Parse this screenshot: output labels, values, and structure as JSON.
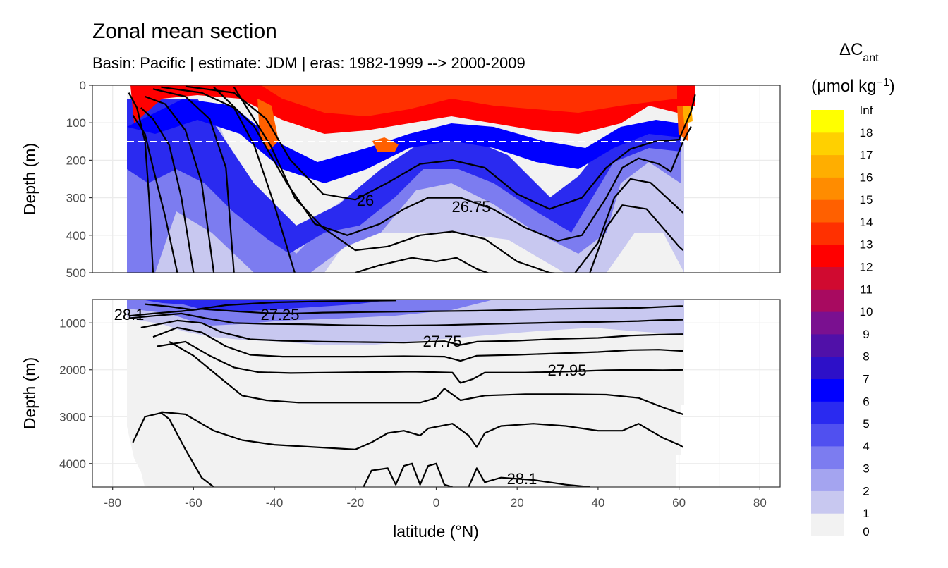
{
  "chart_data": {
    "type": "heatmap",
    "title": "Zonal mean section",
    "subtitle": "Basin: Pacific | estimate: JDM  | eras: 1982-1999 --> 2000-2009",
    "xlabel": "latitude (°N)",
    "ylabel": "Depth (m)",
    "xlim": [
      -85,
      85
    ],
    "x_ticks": [
      "-80",
      "-60",
      "-40",
      "-20",
      "0",
      "20",
      "40",
      "60",
      "80"
    ],
    "panels": [
      {
        "ylim": [
          0,
          500
        ],
        "y_ticks": [
          "0",
          "100",
          "200",
          "300",
          "400",
          "500"
        ]
      },
      {
        "ylim": [
          500,
          4500
        ],
        "y_ticks": [
          "1000",
          "2000",
          "3000",
          "4000"
        ]
      }
    ],
    "reference_depth_line": 150,
    "legend": {
      "title_main": "ΔC",
      "title_sub": "ant",
      "units": "(μmol kg",
      "units_sup": "−1",
      "units_close": ")",
      "placement": "right",
      "bins": [
        {
          "label": "0",
          "color": "#f2f2f2"
        },
        {
          "label": "1",
          "color": "#c8c8f0"
        },
        {
          "label": "2",
          "color": "#a4a4f0"
        },
        {
          "label": "3",
          "color": "#7c7cf0"
        },
        {
          "label": "4",
          "color": "#5050f0"
        },
        {
          "label": "5",
          "color": "#2a2af0"
        },
        {
          "label": "6",
          "color": "#0000ff"
        },
        {
          "label": "7",
          "color": "#2d10c8"
        },
        {
          "label": "8",
          "color": "#5010a8"
        },
        {
          "label": "9",
          "color": "#7a1090"
        },
        {
          "label": "10",
          "color": "#a80a60"
        },
        {
          "label": "11",
          "color": "#d00a30"
        },
        {
          "label": "12",
          "color": "#ff0000"
        },
        {
          "label": "13",
          "color": "#ff3000"
        },
        {
          "label": "14",
          "color": "#ff6000"
        },
        {
          "label": "15",
          "color": "#ff8c00"
        },
        {
          "label": "16",
          "color": "#ffae00"
        },
        {
          "label": "17",
          "color": "#ffd000"
        },
        {
          "label": "18",
          "color": "#ffff00"
        },
        {
          "label": "Inf",
          "color": null
        }
      ]
    },
    "isopycnal_labels": [
      "26",
      "26.75",
      "28.1",
      "27.25",
      "27.75",
      "27.95",
      "28.1"
    ],
    "isopycnals_upper": [
      {
        "d": [
          [
            -76,
            20
          ],
          [
            -74,
            60
          ],
          [
            -72,
            150
          ],
          [
            -71,
            300
          ],
          [
            -70,
            500
          ]
        ]
      },
      {
        "d": [
          [
            -75,
            80
          ],
          [
            -72,
            130
          ],
          [
            -70,
            220
          ],
          [
            -67,
            350
          ],
          [
            -64,
            500
          ]
        ]
      },
      {
        "d": [
          [
            -73,
            60
          ],
          [
            -70,
            90
          ],
          [
            -66,
            160
          ],
          [
            -63,
            300
          ],
          [
            -60,
            500
          ]
        ]
      },
      {
        "d": [
          [
            -72,
            30
          ],
          [
            -67,
            50
          ],
          [
            -62,
            120
          ],
          [
            -58,
            260
          ],
          [
            -55,
            500
          ]
        ]
      },
      {
        "d": [
          [
            -70,
            10
          ],
          [
            -62,
            30
          ],
          [
            -56,
            90
          ],
          [
            -52,
            220
          ],
          [
            -50,
            500
          ]
        ]
      },
      {
        "d": [
          [
            -68,
            5
          ],
          [
            -58,
            20
          ],
          [
            -50,
            60
          ],
          [
            -45,
            160
          ],
          [
            -40,
            320
          ],
          [
            -35,
            500
          ]
        ]
      },
      {
        "d": [
          [
            -62,
            3
          ],
          [
            -50,
            20
          ],
          [
            -42,
            90
          ],
          [
            -36,
            200
          ],
          [
            -28,
            290
          ],
          [
            -20,
            305
          ],
          [
            -12,
            260
          ],
          [
            -4,
            210
          ],
          [
            4,
            200
          ],
          [
            12,
            220
          ],
          [
            20,
            290
          ],
          [
            28,
            330
          ],
          [
            36,
            300
          ],
          [
            42,
            220
          ],
          [
            48,
            170
          ],
          [
            54,
            150
          ],
          [
            60,
            145
          ],
          [
            63,
            70
          ],
          [
            64,
            25
          ]
        ]
      },
      {
        "d": [
          [
            -55,
            5
          ],
          [
            -45,
            110
          ],
          [
            -37,
            260
          ],
          [
            -30,
            370
          ],
          [
            -22,
            400
          ],
          [
            -14,
            370
          ],
          [
            -8,
            330
          ],
          [
            -2,
            300
          ],
          [
            6,
            300
          ],
          [
            14,
            330
          ],
          [
            22,
            380
          ],
          [
            30,
            415
          ],
          [
            36,
            400
          ],
          [
            42,
            300
          ],
          [
            46,
            220
          ],
          [
            50,
            195
          ],
          [
            55,
            210
          ],
          [
            58,
            230
          ],
          [
            61,
            150
          ],
          [
            63,
            110
          ]
        ]
      },
      {
        "d": [
          [
            -50,
            5
          ],
          [
            -41,
            160
          ],
          [
            -35,
            300
          ],
          [
            -28,
            380
          ],
          [
            -20,
            440
          ],
          [
            -12,
            430
          ],
          [
            -4,
            400
          ],
          [
            4,
            390
          ],
          [
            12,
            410
          ],
          [
            20,
            470
          ],
          [
            28,
            500
          ],
          [
            34,
            505
          ],
          [
            40,
            420
          ],
          [
            44,
            300
          ],
          [
            48,
            250
          ],
          [
            53,
            260
          ],
          [
            57,
            300
          ],
          [
            60,
            330
          ],
          [
            61,
            340
          ]
        ]
      },
      {
        "d": [
          [
            -20,
            500
          ],
          [
            -14,
            480
          ],
          [
            -6,
            460
          ],
          [
            0,
            470
          ],
          [
            5,
            460
          ],
          [
            10,
            490
          ],
          [
            14,
            505
          ]
        ]
      },
      {
        "d": [
          [
            38,
            500
          ],
          [
            42,
            380
          ],
          [
            46,
            320
          ],
          [
            52,
            330
          ],
          [
            56,
            380
          ],
          [
            60,
            430
          ],
          [
            61,
            440
          ]
        ]
      }
    ],
    "isopycnals_lower": [
      {
        "d": [
          [
            -72,
            600
          ],
          [
            -66,
            650
          ],
          [
            -60,
            720
          ],
          [
            -52,
            620
          ],
          [
            -46,
            590
          ],
          [
            -40,
            560
          ],
          [
            -30,
            540
          ],
          [
            -20,
            530
          ],
          [
            -10,
            520
          ]
        ]
      },
      {
        "d": [
          [
            -76,
            850
          ],
          [
            -70,
            800
          ],
          [
            -63,
            750
          ],
          [
            -58,
            700
          ],
          [
            -50,
            750
          ],
          [
            -42,
            790
          ],
          [
            -35,
            800
          ],
          [
            -28,
            780
          ],
          [
            -20,
            770
          ],
          [
            -10,
            760
          ],
          [
            0,
            750
          ],
          [
            10,
            740
          ],
          [
            20,
            720
          ],
          [
            30,
            700
          ],
          [
            40,
            690
          ],
          [
            50,
            680
          ],
          [
            55,
            660
          ],
          [
            60,
            640
          ],
          [
            61,
            640
          ]
        ]
      },
      {
        "d": [
          [
            -76,
            900
          ],
          [
            -70,
            850
          ],
          [
            -63,
            800
          ],
          [
            -57,
            900
          ],
          [
            -50,
            1000
          ],
          [
            -42,
            1020
          ],
          [
            -32,
            1030
          ],
          [
            -22,
            1050
          ],
          [
            -12,
            1060
          ],
          [
            0,
            1050
          ],
          [
            10,
            1030
          ],
          [
            20,
            1010
          ],
          [
            30,
            990
          ],
          [
            40,
            980
          ],
          [
            50,
            960
          ],
          [
            55,
            940
          ],
          [
            61,
            930
          ]
        ]
      },
      {
        "d": [
          [
            -73,
            1100
          ],
          [
            -64,
            950
          ],
          [
            -58,
            1000
          ],
          [
            -53,
            1200
          ],
          [
            -46,
            1350
          ],
          [
            -38,
            1380
          ],
          [
            -28,
            1400
          ],
          [
            -18,
            1410
          ],
          [
            -8,
            1420
          ],
          [
            2,
            1390
          ],
          [
            6,
            1470
          ],
          [
            10,
            1400
          ],
          [
            20,
            1380
          ],
          [
            30,
            1340
          ],
          [
            40,
            1320
          ],
          [
            48,
            1270
          ],
          [
            55,
            1250
          ],
          [
            61,
            1240
          ]
        ]
      },
      {
        "d": [
          [
            -70,
            1300
          ],
          [
            -64,
            1100
          ],
          [
            -58,
            1200
          ],
          [
            -52,
            1500
          ],
          [
            -46,
            1680
          ],
          [
            -38,
            1720
          ],
          [
            -28,
            1720
          ],
          [
            -18,
            1720
          ],
          [
            -8,
            1710
          ],
          [
            2,
            1720
          ],
          [
            6,
            1810
          ],
          [
            10,
            1700
          ],
          [
            20,
            1680
          ],
          [
            30,
            1650
          ],
          [
            40,
            1620
          ],
          [
            48,
            1580
          ],
          [
            55,
            1570
          ],
          [
            61,
            1600
          ]
        ]
      },
      {
        "d": [
          [
            -69,
            1500
          ],
          [
            -62,
            1400
          ],
          [
            -56,
            1700
          ],
          [
            -50,
            1950
          ],
          [
            -44,
            2050
          ],
          [
            -36,
            2070
          ],
          [
            -26,
            2060
          ],
          [
            -16,
            2050
          ],
          [
            -6,
            2040
          ],
          [
            4,
            2060
          ],
          [
            6,
            2280
          ],
          [
            9,
            2200
          ],
          [
            12,
            2060
          ],
          [
            22,
            2060
          ],
          [
            32,
            2040
          ],
          [
            42,
            2010
          ],
          [
            50,
            2000
          ],
          [
            56,
            2010
          ],
          [
            61,
            2000
          ]
        ]
      },
      {
        "d": [
          [
            -66,
            1400
          ],
          [
            -60,
            1700
          ],
          [
            -53,
            2200
          ],
          [
            -48,
            2550
          ],
          [
            -42,
            2650
          ],
          [
            -34,
            2700
          ],
          [
            -24,
            2700
          ],
          [
            -14,
            2700
          ],
          [
            -4,
            2700
          ],
          [
            0,
            2600
          ],
          [
            2,
            2400
          ],
          [
            6,
            2650
          ],
          [
            12,
            2550
          ],
          [
            22,
            2520
          ],
          [
            32,
            2520
          ],
          [
            42,
            2530
          ],
          [
            50,
            2600
          ],
          [
            56,
            2800
          ],
          [
            61,
            2950
          ]
        ]
      },
      {
        "d": [
          [
            -68,
            2900
          ],
          [
            -62,
            2950
          ],
          [
            -55,
            3300
          ],
          [
            -48,
            3500
          ],
          [
            -40,
            3600
          ],
          [
            -30,
            3650
          ],
          [
            -20,
            3700
          ],
          [
            -16,
            3550
          ],
          [
            -12,
            3350
          ],
          [
            -8,
            3300
          ],
          [
            -4,
            3400
          ],
          [
            -2,
            3250
          ],
          [
            4,
            3150
          ],
          [
            8,
            3400
          ],
          [
            10,
            3650
          ],
          [
            12,
            3350
          ],
          [
            16,
            3200
          ],
          [
            24,
            3150
          ],
          [
            32,
            3200
          ],
          [
            40,
            3300
          ],
          [
            46,
            3300
          ],
          [
            50,
            3150
          ],
          [
            52,
            3250
          ],
          [
            56,
            3450
          ],
          [
            60,
            3600
          ],
          [
            61,
            3650
          ]
        ]
      },
      {
        "d": [
          [
            -75,
            3550
          ],
          [
            -72,
            3000
          ],
          [
            -68,
            2920
          ],
          [
            -66,
            3050
          ],
          [
            -62,
            3700
          ],
          [
            -58,
            4300
          ],
          [
            -55,
            4500
          ]
        ]
      },
      {
        "d": [
          [
            -18,
            4500
          ],
          [
            -16,
            4150
          ],
          [
            -12,
            4100
          ],
          [
            -10,
            4450
          ],
          [
            -8,
            4050
          ],
          [
            -6,
            4000
          ],
          [
            -4,
            4450
          ],
          [
            -2,
            4050
          ],
          [
            0,
            4000
          ],
          [
            2,
            4450
          ],
          [
            4,
            4500
          ]
        ]
      },
      {
        "d": [
          [
            8,
            4500
          ],
          [
            10,
            4100
          ],
          [
            12,
            4400
          ],
          [
            16,
            4300
          ],
          [
            24,
            4350
          ],
          [
            32,
            4450
          ],
          [
            38,
            4500
          ]
        ]
      }
    ]
  }
}
